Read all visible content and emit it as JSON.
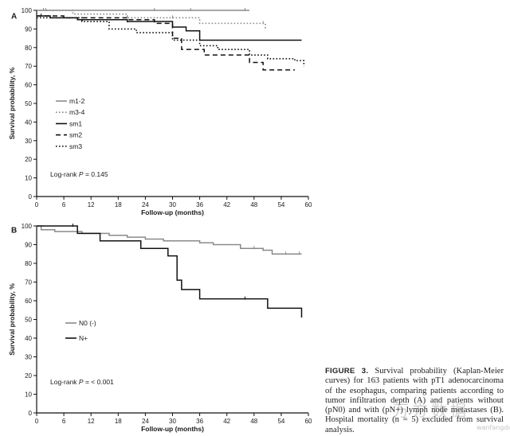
{
  "chart_data": [
    {
      "type": "line",
      "step": true,
      "panel_label": "A",
      "ylabel": "Survival probability, %",
      "xlabel": "Follow-up (months)",
      "xlim": [
        0,
        60
      ],
      "ylim": [
        0,
        100
      ],
      "xticks": [
        "0",
        "6",
        "12",
        "18",
        "24",
        "30",
        "36",
        "42",
        "48",
        "54",
        "60"
      ],
      "yticks": [
        "0",
        "10",
        "20",
        "30",
        "40",
        "50",
        "60",
        "70",
        "80",
        "90",
        "100"
      ],
      "legend_position": "middle-left",
      "annotation_prefix": "Log-rank ",
      "annotation_p": "P",
      "annotation_value": " = 0.145",
      "series": [
        {
          "name": "m1-2",
          "color": "#8a8a8a",
          "style": "solid",
          "x": [
            0,
            2,
            47
          ],
          "y": [
            100,
            100,
            100
          ]
        },
        {
          "name": "m3-4",
          "color": "#8a8a8a",
          "style": "dotted",
          "x": [
            0,
            8,
            20,
            36,
            50,
            50.5
          ],
          "y": [
            100,
            98,
            96,
            93,
            93,
            90
          ]
        },
        {
          "name": "sm1",
          "color": "#111111",
          "style": "solid",
          "x": [
            0,
            3,
            9,
            20,
            30,
            33,
            36,
            58.5
          ],
          "y": [
            97,
            96,
            95,
            94,
            91,
            89,
            84,
            84
          ]
        },
        {
          "name": "sm2",
          "color": "#111111",
          "style": "dashed",
          "x": [
            0,
            6,
            20,
            26,
            30,
            32,
            37,
            47,
            50,
            57
          ],
          "y": [
            97,
            96,
            95,
            93,
            85,
            79,
            76,
            72,
            68,
            68
          ]
        },
        {
          "name": "sm3",
          "color": "#111111",
          "style": "dotted",
          "x": [
            0,
            10,
            16,
            22,
            30,
            36,
            40,
            47,
            51,
            57,
            59
          ],
          "y": [
            96,
            94,
            90,
            88,
            84,
            81,
            79,
            76,
            74,
            73,
            70
          ]
        }
      ],
      "censor_marks": [
        {
          "series": "m1-2",
          "x": [
            1.5,
            2,
            26,
            34,
            46
          ]
        },
        {
          "series": "m3-4",
          "x": [
            20,
            30,
            50
          ]
        },
        {
          "series": "sm1",
          "x": [
            1,
            20
          ]
        }
      ]
    },
    {
      "type": "line",
      "step": true,
      "panel_label": "B",
      "ylabel": "Survival probability, %",
      "xlabel": "Follow-up (months)",
      "xlim": [
        0,
        60
      ],
      "ylim": [
        0,
        100
      ],
      "xticks": [
        "0",
        "6",
        "12",
        "18",
        "24",
        "30",
        "36",
        "42",
        "48",
        "54",
        "60"
      ],
      "yticks": [
        "0",
        "10",
        "20",
        "30",
        "40",
        "50",
        "60",
        "70",
        "80",
        "90",
        "100"
      ],
      "legend_position": "middle-left",
      "annotation_prefix": "Log-rank ",
      "annotation_p": "P",
      "annotation_value": " = < 0.001",
      "series": [
        {
          "name": "N0 (-)",
          "color": "#8a8a8a",
          "style": "solid",
          "x": [
            0,
            1,
            4,
            10,
            16,
            20,
            24,
            28,
            36,
            39,
            45,
            50,
            52,
            58.5
          ],
          "y": [
            100,
            98,
            97,
            96,
            95,
            94,
            93,
            92,
            91,
            90,
            88,
            87,
            85,
            85
          ]
        },
        {
          "name": "N+",
          "color": "#111111",
          "style": "solid",
          "x": [
            0,
            8,
            9,
            14,
            23,
            29,
            31,
            32,
            36,
            51,
            58,
            58.5
          ],
          "y": [
            100,
            100,
            96,
            92,
            88,
            84,
            71,
            66,
            61,
            56,
            56,
            51
          ]
        }
      ],
      "censor_marks": [
        {
          "series": "N0 (-)",
          "x": [
            48,
            50,
            55,
            58
          ]
        },
        {
          "series": "N+",
          "x": [
            8,
            46
          ]
        }
      ]
    }
  ],
  "caption": {
    "label": "FIGURE 3.",
    "text": " Survival probability (Kaplan-Meier curves) for 163 patients with pT1 adenocarcinoma of the esophagus, comparing patients according to tumor infiltration depth (A) and patients without (pN0) and with (pN+) lymph node metastases (B). Hospital mortality (n = 5) excluded from survival analysis."
  },
  "watermark": "万方数据",
  "watermark_sub": "wanfangdata"
}
